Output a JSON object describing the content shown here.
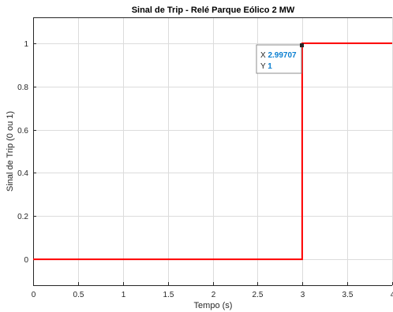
{
  "chart_data": {
    "type": "line",
    "title": "Sinal de Trip - Relé Parque Eólico 2 MW",
    "xlabel": "Tempo (s)",
    "ylabel": "Sinal de Trip (0 ou 1)",
    "xlim": [
      0,
      4
    ],
    "ylim": [
      -0.12,
      1.12
    ],
    "grid": true,
    "x_ticks": [
      "0",
      "0.5",
      "1",
      "1.5",
      "2",
      "2.5",
      "3",
      "3.5",
      "4"
    ],
    "y_ticks": [
      "0",
      "0.2",
      "0.4",
      "0.6",
      "0.8",
      "1"
    ],
    "series": [
      {
        "color": "#ff0000",
        "x": [
          0,
          2.99707,
          2.99707,
          4
        ],
        "y": [
          0,
          0,
          1,
          1
        ]
      }
    ],
    "datatip": {
      "x_label": "X",
      "x_value": "2.99707",
      "y_label": "Y",
      "y_value": "1",
      "x": 2.99707,
      "y": 1
    }
  }
}
